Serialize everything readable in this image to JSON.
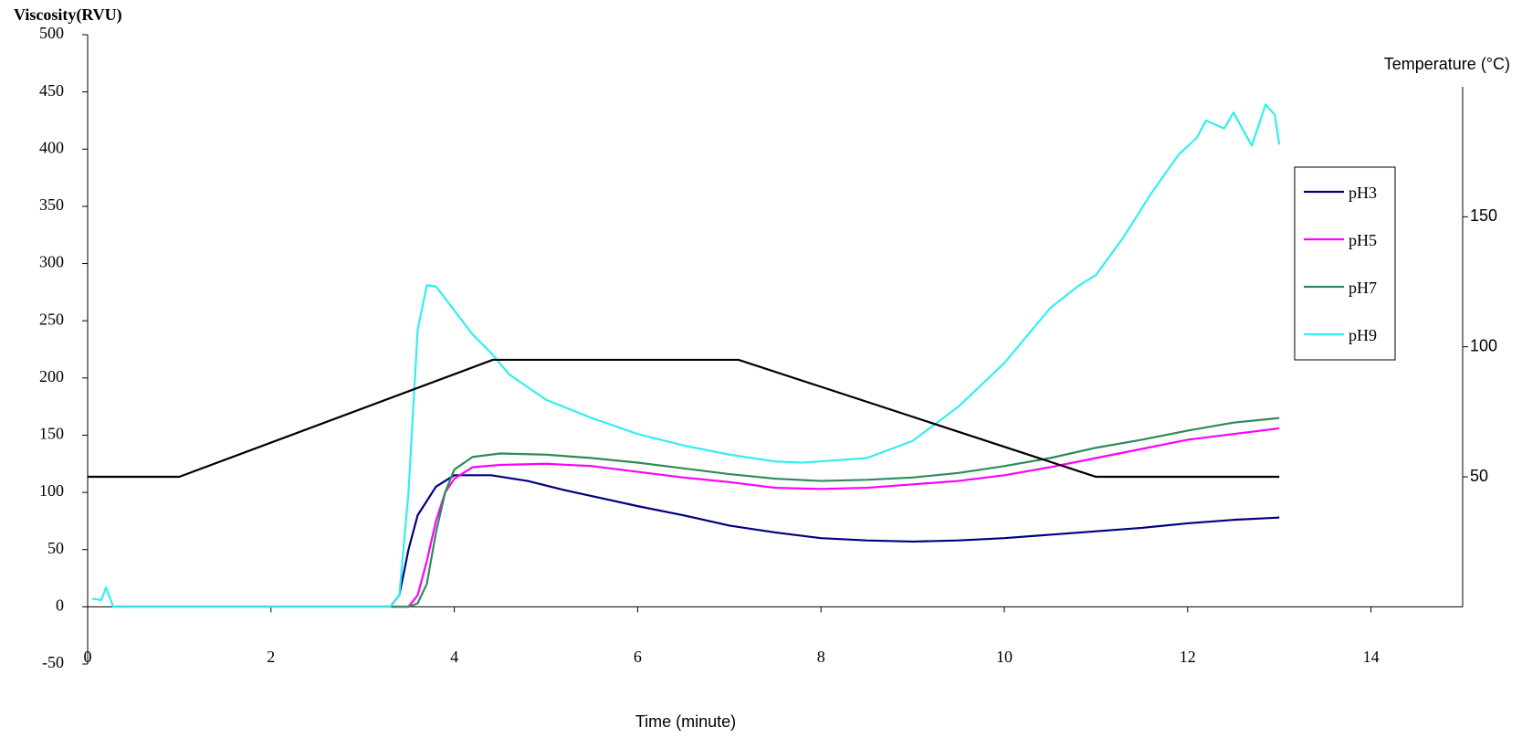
{
  "chart_data": {
    "type": "line",
    "y_label": "Viscosity(RVU)",
    "y2_label": "Temperature (°C)",
    "x_label": "Time (minute)",
    "xlim": [
      0,
      15
    ],
    "xticks": [
      0,
      2,
      4,
      6,
      8,
      10,
      12,
      14
    ],
    "ylim": [
      -50,
      500
    ],
    "yticks": [
      -50,
      0,
      50,
      100,
      150,
      200,
      250,
      300,
      350,
      400,
      450,
      500
    ],
    "y2lim": [
      0,
      200
    ],
    "y2ticks": [
      50,
      100,
      150
    ],
    "legend_position": "right",
    "series": [
      {
        "name": "pH3",
        "color": "#000080",
        "x": [
          0.3,
          3.3,
          3.4,
          3.5,
          3.6,
          3.8,
          4.0,
          4.4,
          4.8,
          5.2,
          5.6,
          6,
          6.5,
          7,
          7.5,
          8,
          8.5,
          9,
          9.5,
          10,
          10.5,
          11,
          11.5,
          12,
          12.5,
          13
        ],
        "values": [
          0,
          0,
          10,
          50,
          80,
          105,
          115,
          115,
          110,
          102,
          95,
          88,
          80,
          71,
          65,
          60,
          58,
          57,
          58,
          60,
          63,
          66,
          69,
          73,
          76,
          78
        ]
      },
      {
        "name": "pH5",
        "color": "#ff00ff",
        "x": [
          0.3,
          3.5,
          3.6,
          3.7,
          3.8,
          3.9,
          4.0,
          4.2,
          4.5,
          5,
          5.5,
          6,
          6.5,
          7,
          7.5,
          8,
          8.5,
          9,
          9.5,
          10,
          10.5,
          11,
          11.5,
          12,
          12.5,
          13
        ],
        "values": [
          0,
          0,
          10,
          40,
          75,
          100,
          112,
          122,
          124,
          125,
          123,
          118,
          113,
          109,
          104,
          103,
          104,
          107,
          110,
          115,
          122,
          130,
          138,
          146,
          151,
          156
        ]
      },
      {
        "name": "pH7",
        "color": "#2e8b57",
        "x": [
          0.3,
          3.5,
          3.6,
          3.7,
          3.8,
          3.9,
          4.0,
          4.2,
          4.5,
          5,
          5.5,
          6,
          6.5,
          7,
          7.5,
          8,
          8.5,
          9,
          9.5,
          10,
          10.5,
          11,
          11.5,
          12,
          12.5,
          13
        ],
        "values": [
          0,
          0,
          3,
          20,
          65,
          100,
          120,
          131,
          134,
          133,
          130,
          126,
          121,
          116,
          112,
          110,
          111,
          113,
          117,
          123,
          130,
          139,
          146,
          154,
          161,
          165
        ]
      },
      {
        "name": "pH9",
        "color": "#33eeee",
        "x": [
          0.05,
          0.15,
          0.2,
          0.28,
          3.3,
          3.4,
          3.5,
          3.6,
          3.7,
          3.8,
          4.0,
          4.2,
          4.4,
          4.6,
          5,
          5.5,
          6,
          6.5,
          7,
          7.5,
          7.8,
          8.5,
          9,
          9.5,
          10,
          10.5,
          10.8,
          11,
          11.3,
          11.6,
          11.9,
          12.1,
          12.2,
          12.4,
          12.5,
          12.7,
          12.85,
          12.95,
          13
        ],
        "values": [
          7,
          6,
          17,
          0,
          0,
          10,
          100,
          242,
          281,
          280,
          259,
          238,
          222,
          203,
          181,
          165,
          151,
          141,
          133,
          127,
          126,
          130,
          145,
          175,
          213,
          261,
          280,
          290,
          323,
          361,
          395,
          410,
          425,
          418,
          432,
          403,
          439,
          430,
          404
        ]
      },
      {
        "color": "#000000",
        "axis": "y2",
        "x": [
          0,
          1,
          4.42,
          7.1,
          11,
          13
        ],
        "values": [
          50,
          50,
          95,
          95,
          50,
          50
        ]
      }
    ]
  }
}
